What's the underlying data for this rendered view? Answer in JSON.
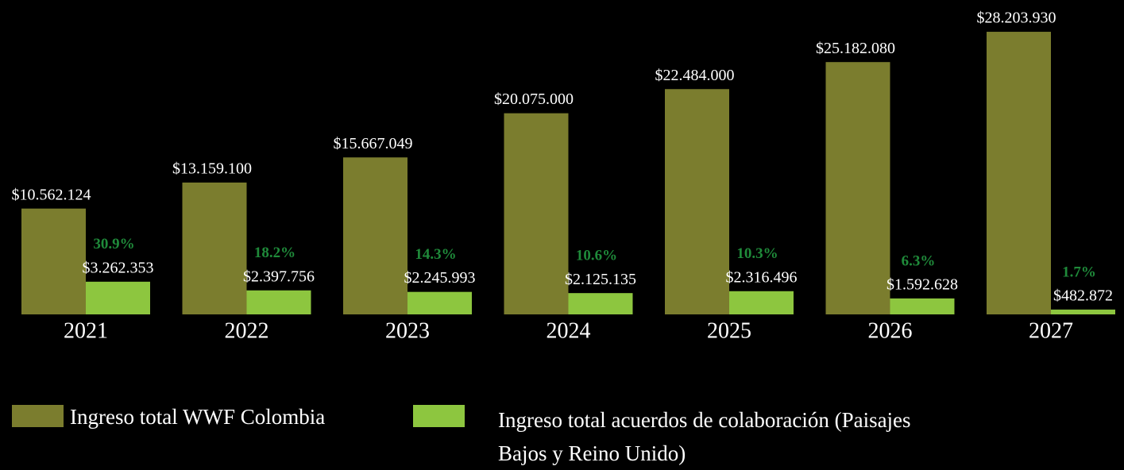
{
  "chart_data": {
    "type": "bar",
    "categories": [
      "2021",
      "2022",
      "2023",
      "2024",
      "2025",
      "2026",
      "2027"
    ],
    "series": [
      {
        "name": "Ingreso total WWF Colombia",
        "color": "#7b7d2e",
        "values": [
          10562124,
          13159100,
          15667049,
          20075000,
          22484000,
          25182080,
          28203930
        ],
        "value_labels": [
          "$10.562.124",
          "$13.159.100",
          "$15.667.049",
          "$20.075.000",
          "$22.484.000",
          "$25.182.080",
          "$28.203.930"
        ]
      },
      {
        "name": "Ingreso total acuerdos de colaboración (Paisajes Bajos y Reino Unido)",
        "color": "#8dc63f",
        "values": [
          3262353,
          2397756,
          2245993,
          2125135,
          2316496,
          1592628,
          482872
        ],
        "value_labels": [
          "$3.262.353",
          "$2.397.756",
          "$2.245.993",
          "$2.125.135",
          "$2.316.496",
          "$1.592.628",
          "$482.872"
        ]
      }
    ],
    "annotations": [
      "30.9%",
      "18.2%",
      "14.3%",
      "10.6%",
      "10.3%",
      "6.3%",
      "1.7%"
    ],
    "ylim": [
      0,
      29000000
    ]
  }
}
